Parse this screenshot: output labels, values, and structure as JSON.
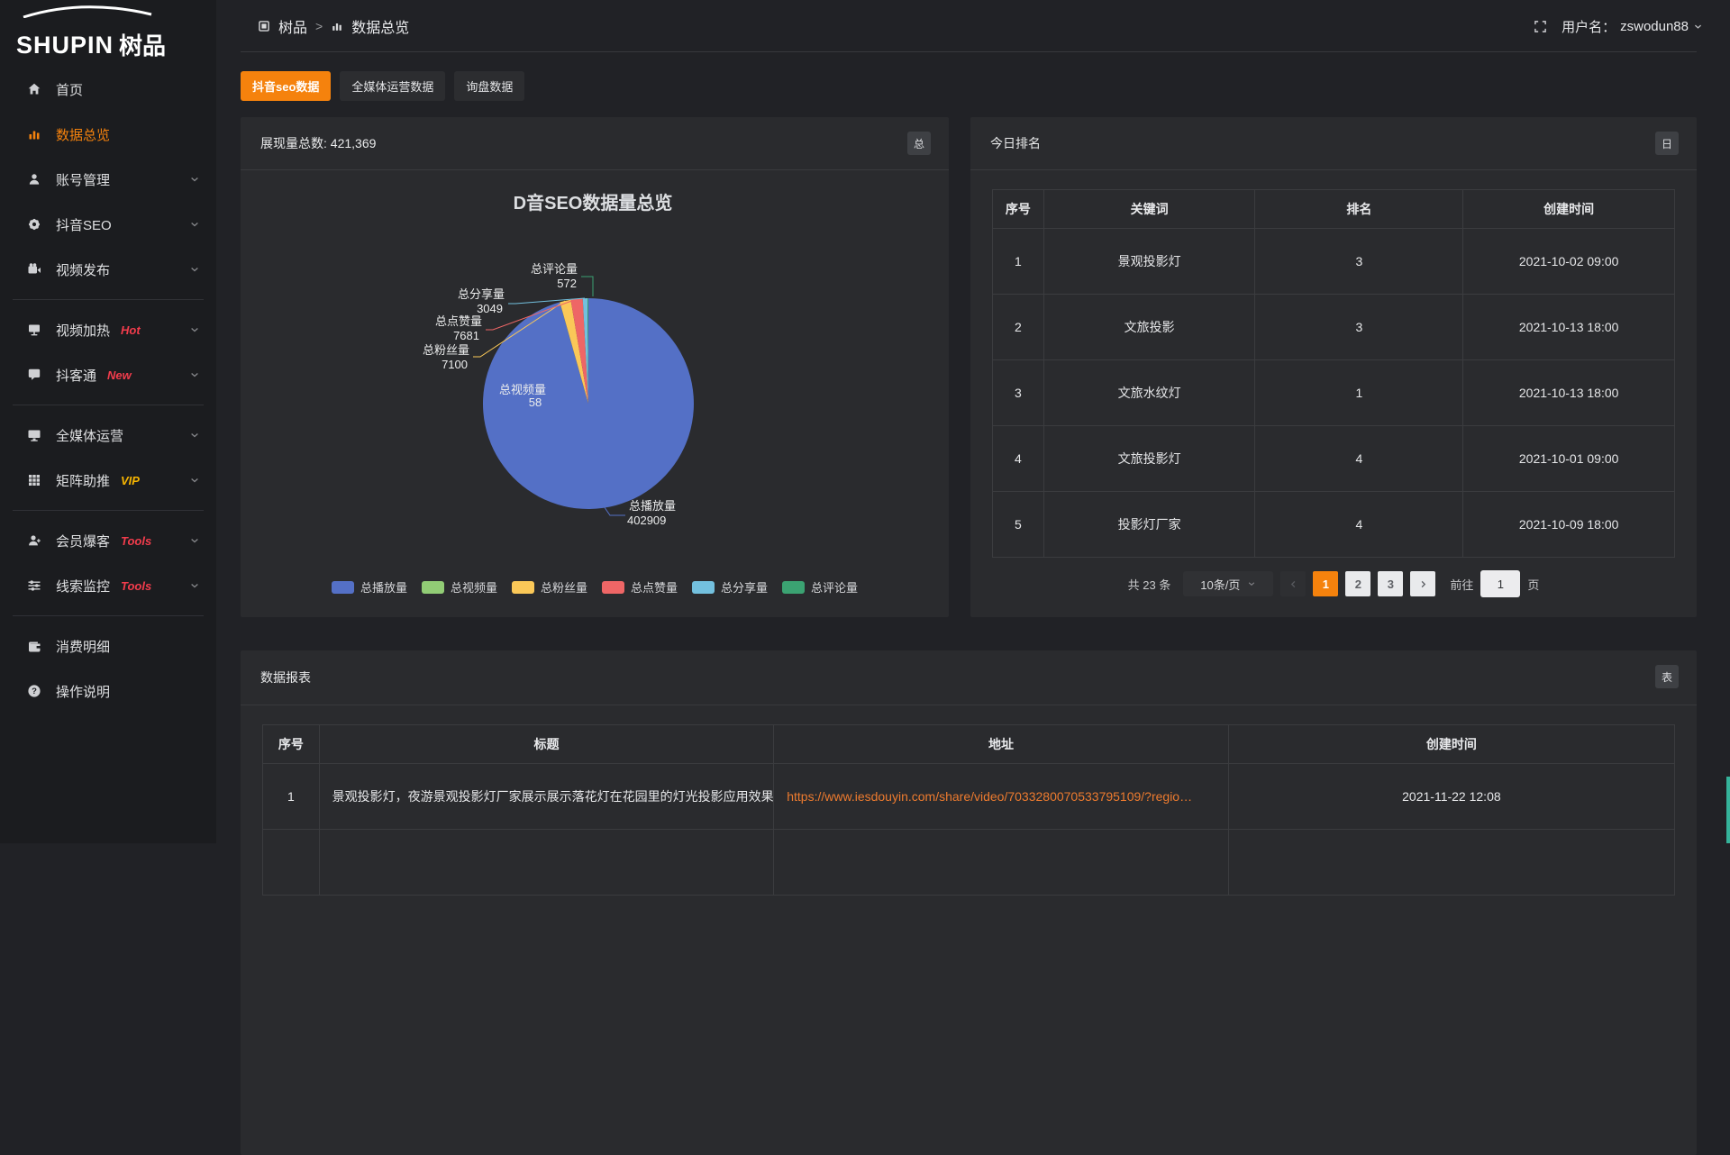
{
  "colors": {
    "accent": "#f5820d",
    "link": "#ed7b2f",
    "hot_badge": "#f23c4c",
    "vip_badge": "#f7b500",
    "scroll_thumb": "#35b39a"
  },
  "logo": {
    "text_en": "SHUPIN",
    "text_cn": "树品"
  },
  "topbar": {
    "breadcrumb": [
      {
        "label": "树品",
        "icon": "app-icon"
      },
      {
        "label": "数据总览",
        "icon": "chart-icon"
      }
    ],
    "breadcrumb_separator": ">",
    "username_label": "用户名：",
    "username": "zswodun88"
  },
  "sidebar": {
    "items": [
      {
        "label": "首页",
        "icon": "home-icon",
        "arrow": false
      },
      {
        "label": "数据总览",
        "icon": "chart-icon",
        "arrow": false,
        "active": true
      },
      {
        "label": "账号管理",
        "icon": "user-icon",
        "arrow": true
      },
      {
        "label": "抖音SEO",
        "icon": "gear-icon",
        "arrow": true
      },
      {
        "label": "视频发布",
        "icon": "video-icon",
        "arrow": true,
        "divider_after": true
      },
      {
        "label": "视频加热",
        "icon": "board-icon",
        "arrow": true,
        "badge": "Hot",
        "badge_color": "#f23c4c"
      },
      {
        "label": "抖客通",
        "icon": "chat-icon",
        "arrow": true,
        "badge": "New",
        "badge_color": "#f23c4c",
        "divider_after": true
      },
      {
        "label": "全媒体运营",
        "icon": "monitor-icon",
        "arrow": true
      },
      {
        "label": "矩阵助推",
        "icon": "grid-icon",
        "arrow": true,
        "badge": "VIP",
        "badge_color": "#f7b500",
        "divider_after": true
      },
      {
        "label": "会员爆客",
        "icon": "member-icon",
        "arrow": true,
        "badge": "Tools",
        "badge_color": "#f23c4c"
      },
      {
        "label": "线索监控",
        "icon": "sliders-icon",
        "arrow": true,
        "badge": "Tools",
        "badge_color": "#f23c4c",
        "divider_after": true
      },
      {
        "label": "消费明细",
        "icon": "wallet-icon",
        "arrow": false
      },
      {
        "label": "操作说明",
        "icon": "question-icon",
        "arrow": false
      }
    ]
  },
  "tabs": [
    {
      "label": "抖音seo数据",
      "active": true
    },
    {
      "label": "全媒体运营数据",
      "active": false
    },
    {
      "label": "询盘数据",
      "active": false
    }
  ],
  "left_panel": {
    "header": "展现量总数: 421,369",
    "corner_button": "总"
  },
  "chart_data": {
    "type": "pie",
    "title": "D音SEO数据量总览",
    "total": 421369,
    "legend_position": "bottom",
    "series": [
      {
        "name": "总播放量",
        "value": 402909,
        "color": "#5470c6"
      },
      {
        "name": "总视频量",
        "value": 58,
        "color": "#91cc75"
      },
      {
        "name": "总粉丝量",
        "value": 7100,
        "color": "#fac858"
      },
      {
        "name": "总点赞量",
        "value": 7681,
        "color": "#ee6666"
      },
      {
        "name": "总分享量",
        "value": 3049,
        "color": "#73c0de"
      },
      {
        "name": "总评论量",
        "value": 572,
        "color": "#3ba272"
      }
    ]
  },
  "ranking_panel": {
    "title": "今日排名",
    "corner_button": "日",
    "columns": [
      "序号",
      "关键词",
      "排名",
      "创建时间"
    ],
    "rows": [
      [
        "1",
        "景观投影灯",
        "3",
        "2021-10-02 09:00"
      ],
      [
        "2",
        "文旅投影",
        "3",
        "2021-10-13 18:00"
      ],
      [
        "3",
        "文旅水纹灯",
        "1",
        "2021-10-13 18:00"
      ],
      [
        "4",
        "文旅投影灯",
        "4",
        "2021-10-01 09:00"
      ],
      [
        "5",
        "投影灯厂家",
        "4",
        "2021-10-09 18:00"
      ]
    ],
    "pagination": {
      "total_text": "共 23 条",
      "page_size": "10条/页",
      "pages": [
        "1",
        "2",
        "3"
      ],
      "active_page": "1",
      "goto_label": "前往",
      "goto_value": "1",
      "goto_suffix": "页"
    }
  },
  "report_panel": {
    "title": "数据报表",
    "corner_button": "表",
    "columns": [
      "序号",
      "标题",
      "地址",
      "创建时间"
    ],
    "rows": [
      {
        "seq": "1",
        "title": "景观投影灯，夜游景观投影灯厂家展示展示落花灯在花园里的灯光投影应用效果 #",
        "url": "https://www.iesdouyin.com/share/video/7033280070533795109/?regio…",
        "time": "2021-11-22 12:08"
      }
    ]
  }
}
